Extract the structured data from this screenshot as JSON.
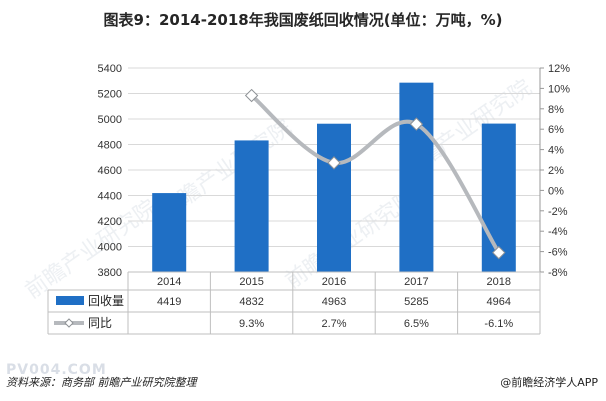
{
  "title": "图表9：2014-2018年我国废纸回收情况(单位：万吨，%)",
  "source_text": "资料来源：商务部 前瞻产业研究院整理",
  "brand_text": "@前瞻经济学人APP",
  "watermark_text": "前瞻产业研究院",
  "pv_watermark": "PV004.COM",
  "colors": {
    "bar": "#1f6fc5",
    "line": "#b6b9bd",
    "marker": "#ffffff",
    "grid": "#d9d9d9"
  },
  "chart_data": {
    "type": "bar",
    "categories": [
      "2014",
      "2015",
      "2016",
      "2017",
      "2018"
    ],
    "series": [
      {
        "name": "回收量",
        "type": "bar",
        "axis": "left",
        "values": [
          4419,
          4832,
          4963,
          5285,
          4964
        ],
        "labels": [
          "4419",
          "4832",
          "4963",
          "5285",
          "4964"
        ]
      },
      {
        "name": "同比",
        "type": "line",
        "axis": "right",
        "values": [
          null,
          9.3,
          2.7,
          6.5,
          -6.1
        ],
        "labels": [
          "",
          "9.3%",
          "2.7%",
          "6.5%",
          "-6.1%"
        ]
      }
    ],
    "y_left": {
      "min": 3800,
      "max": 5400,
      "step": 200,
      "ticks": [
        "3800",
        "4000",
        "4200",
        "4400",
        "4600",
        "4800",
        "5000",
        "5200",
        "5400"
      ]
    },
    "y_right": {
      "min": -8,
      "max": 12,
      "step": 2,
      "ticks": [
        "-8%",
        "-6%",
        "-4%",
        "-2%",
        "0%",
        "2%",
        "4%",
        "6%",
        "8%",
        "10%",
        "12%"
      ]
    },
    "grid": true,
    "legend": "data-table-below"
  }
}
